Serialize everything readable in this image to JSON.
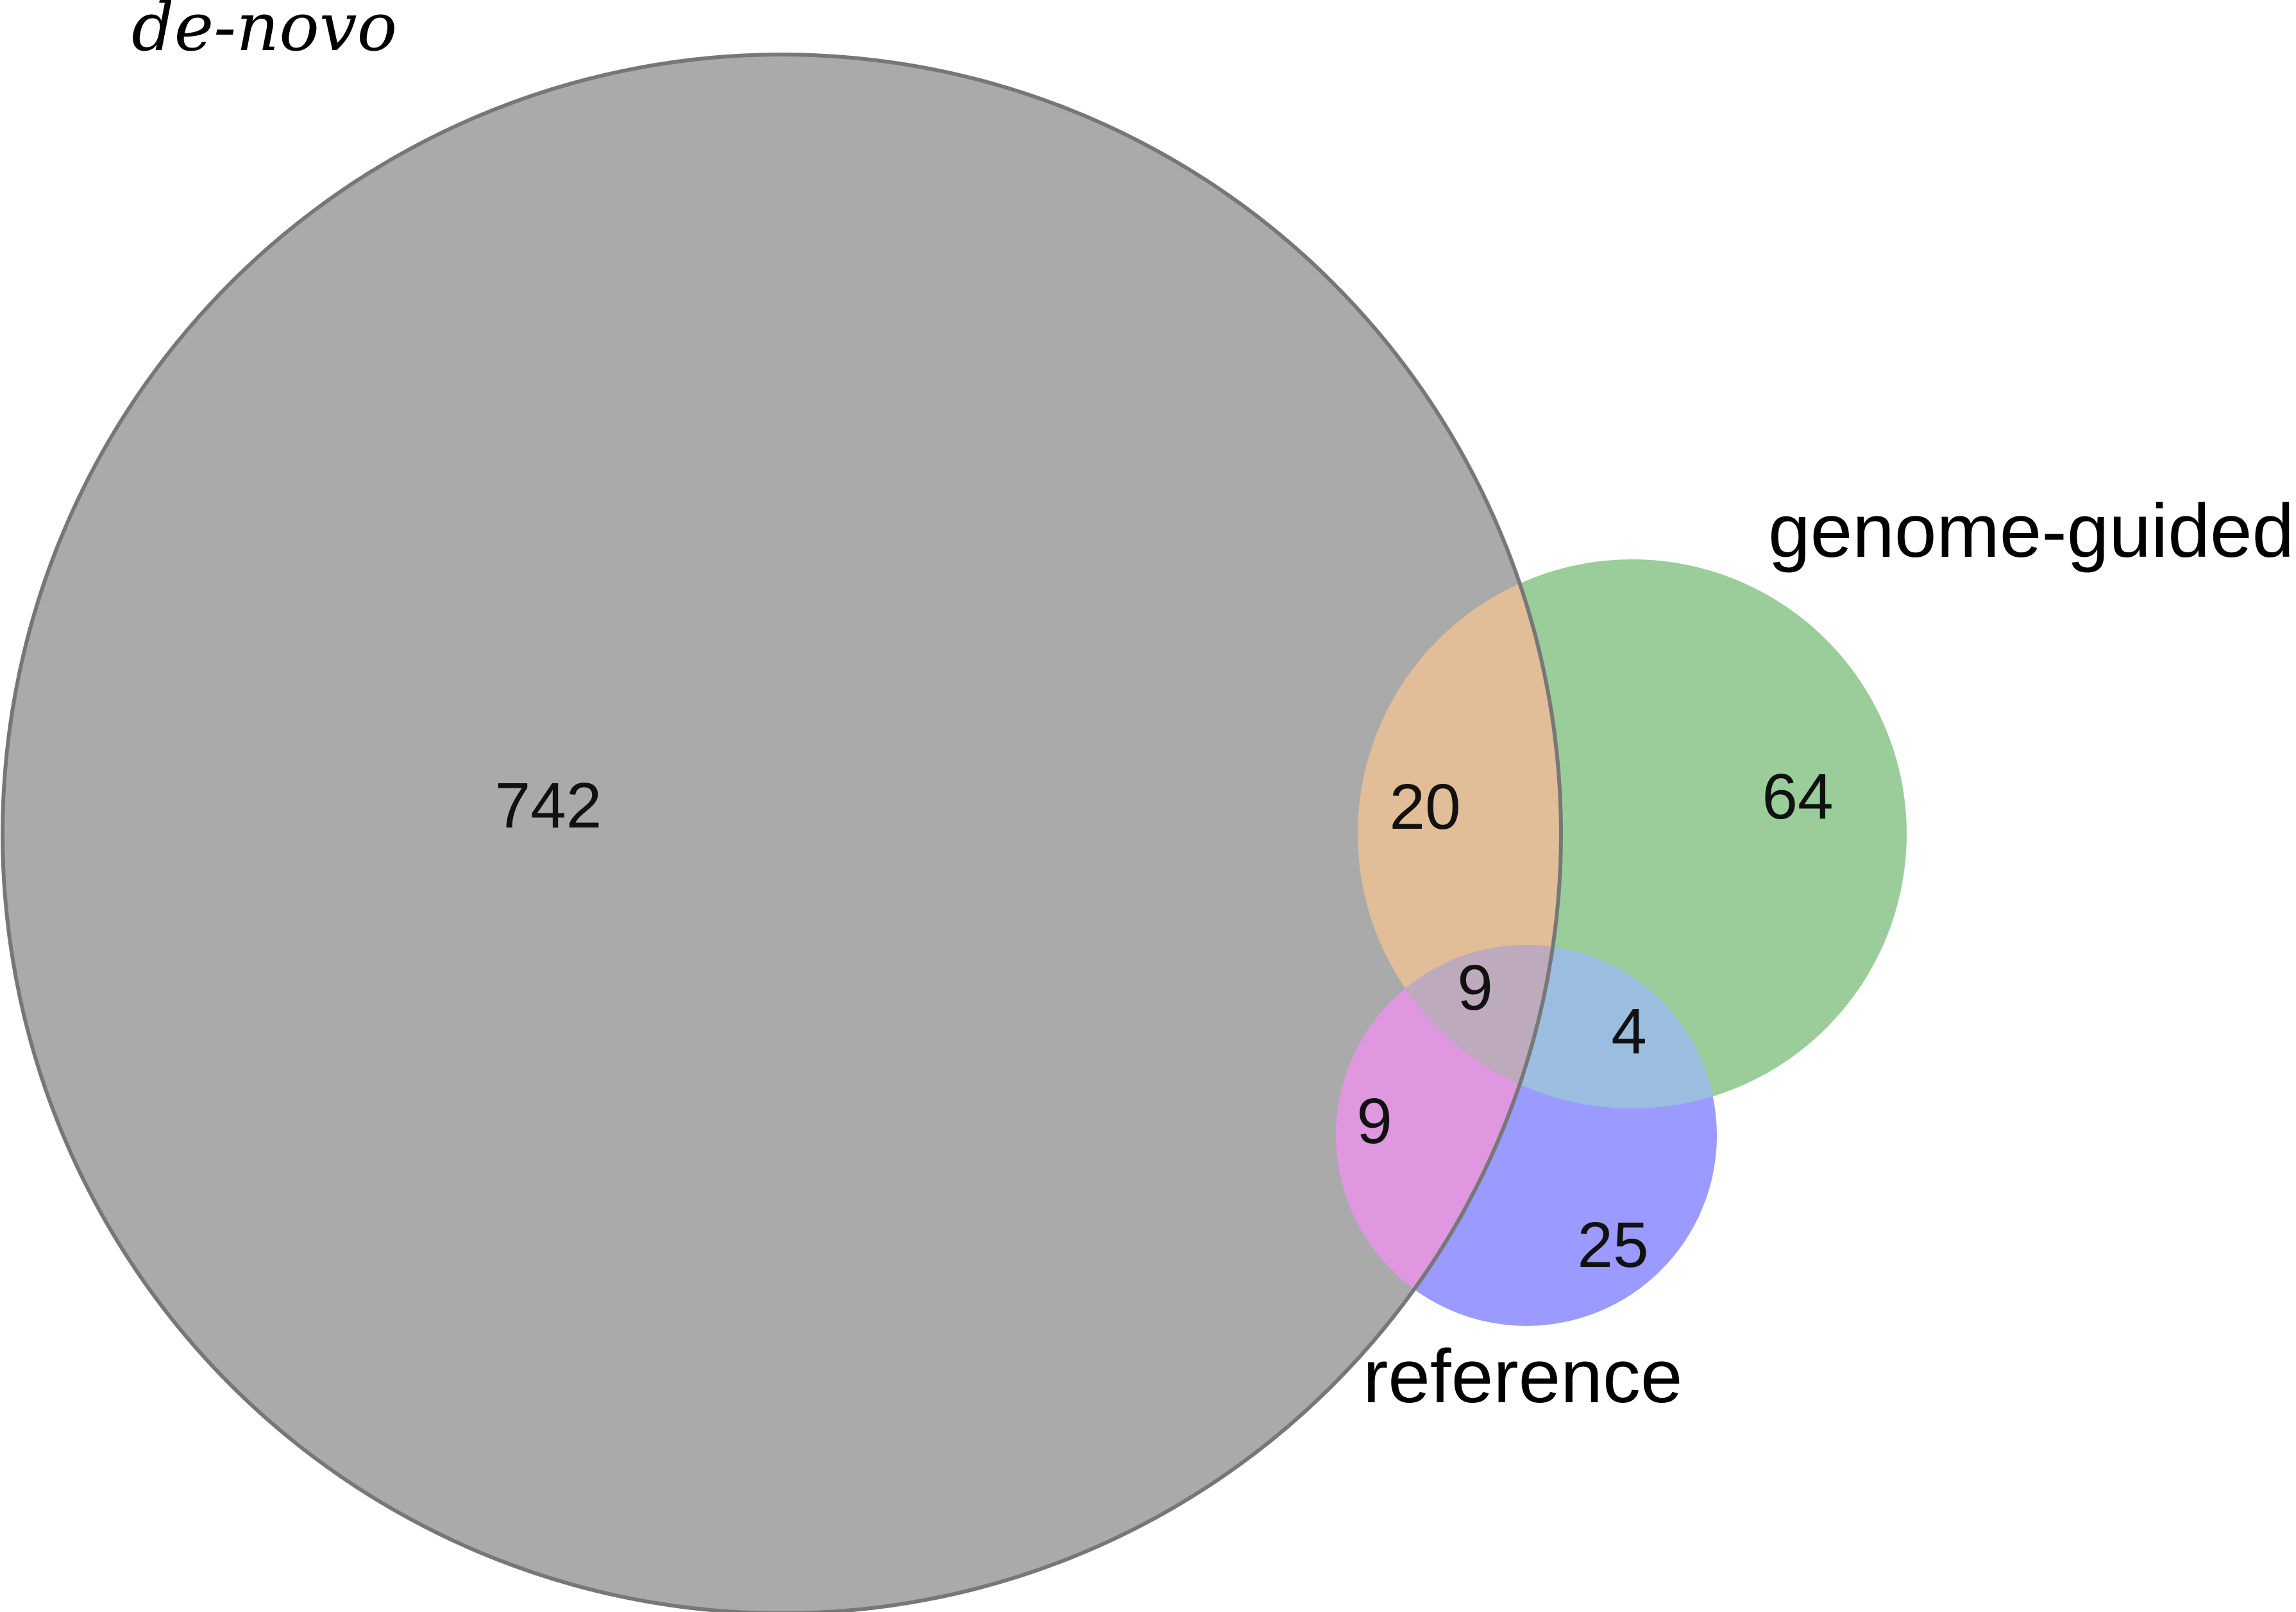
{
  "sets": {
    "de_novo": {
      "label": "de-novo",
      "color": "#aaaaaa"
    },
    "genome_guided": {
      "label": "genome-guided",
      "color": "#9acd9a"
    },
    "reference": {
      "label": "reference",
      "color": "#9a9aff"
    }
  },
  "regions": {
    "de_novo_only": "742",
    "genome_guided_only": "64",
    "reference_only": "25",
    "de_novo_and_genome_guided": "20",
    "de_novo_and_reference": "9",
    "genome_guided_and_reference": "4",
    "all_three": "9"
  },
  "colors": {
    "de_novo_and_genome_guided": "#e1bd98",
    "de_novo_and_reference": "#df98df",
    "genome_guided_and_reference": "#9bbde0",
    "all_three": "#bdaabd",
    "outline": "#777777"
  }
}
